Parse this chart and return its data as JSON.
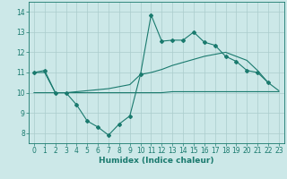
{
  "xlabel": "Humidex (Indice chaleur)",
  "background_color": "#cce8e8",
  "grid_color": "#aacccc",
  "line_color": "#1a7a6e",
  "xlim": [
    -0.5,
    23.5
  ],
  "ylim": [
    7.5,
    14.5
  ],
  "yticks": [
    8,
    9,
    10,
    11,
    12,
    13,
    14
  ],
  "xticks": [
    0,
    1,
    2,
    3,
    4,
    5,
    6,
    7,
    8,
    9,
    10,
    11,
    12,
    13,
    14,
    15,
    16,
    17,
    18,
    19,
    20,
    21,
    22,
    23
  ],
  "line1_x": [
    0,
    1,
    2,
    3,
    4,
    5,
    6,
    7,
    8,
    9,
    10,
    11,
    12,
    13,
    14,
    15,
    16,
    17,
    18,
    19,
    20,
    21,
    22
  ],
  "line1_y": [
    11.0,
    11.1,
    10.0,
    10.0,
    9.4,
    8.6,
    8.3,
    7.9,
    8.45,
    8.85,
    10.9,
    13.85,
    12.55,
    12.6,
    12.6,
    13.0,
    12.5,
    12.35,
    11.8,
    11.55,
    11.1,
    11.0,
    10.5
  ],
  "line2_x": [
    0,
    1,
    2,
    3,
    4,
    5,
    6,
    7,
    8,
    9,
    10,
    11,
    12,
    13,
    14,
    15,
    16,
    17,
    18,
    19,
    20,
    21,
    22,
    23
  ],
  "line2_y": [
    10.0,
    10.0,
    10.0,
    10.0,
    10.0,
    10.0,
    10.0,
    10.0,
    10.0,
    10.0,
    10.0,
    10.0,
    10.0,
    10.05,
    10.05,
    10.05,
    10.05,
    10.05,
    10.05,
    10.05,
    10.05,
    10.05,
    10.05,
    10.05
  ],
  "line3_x": [
    0,
    1,
    2,
    3,
    4,
    5,
    6,
    7,
    8,
    9,
    10,
    11,
    12,
    13,
    14,
    15,
    16,
    17,
    18,
    19,
    20,
    21,
    22,
    23
  ],
  "line3_y": [
    11.0,
    11.0,
    10.0,
    10.0,
    10.05,
    10.1,
    10.15,
    10.2,
    10.3,
    10.4,
    10.9,
    11.0,
    11.15,
    11.35,
    11.5,
    11.65,
    11.8,
    11.9,
    12.0,
    11.8,
    11.6,
    11.1,
    10.5,
    10.1
  ],
  "tick_fontsize": 5.5,
  "xlabel_fontsize": 6.5
}
